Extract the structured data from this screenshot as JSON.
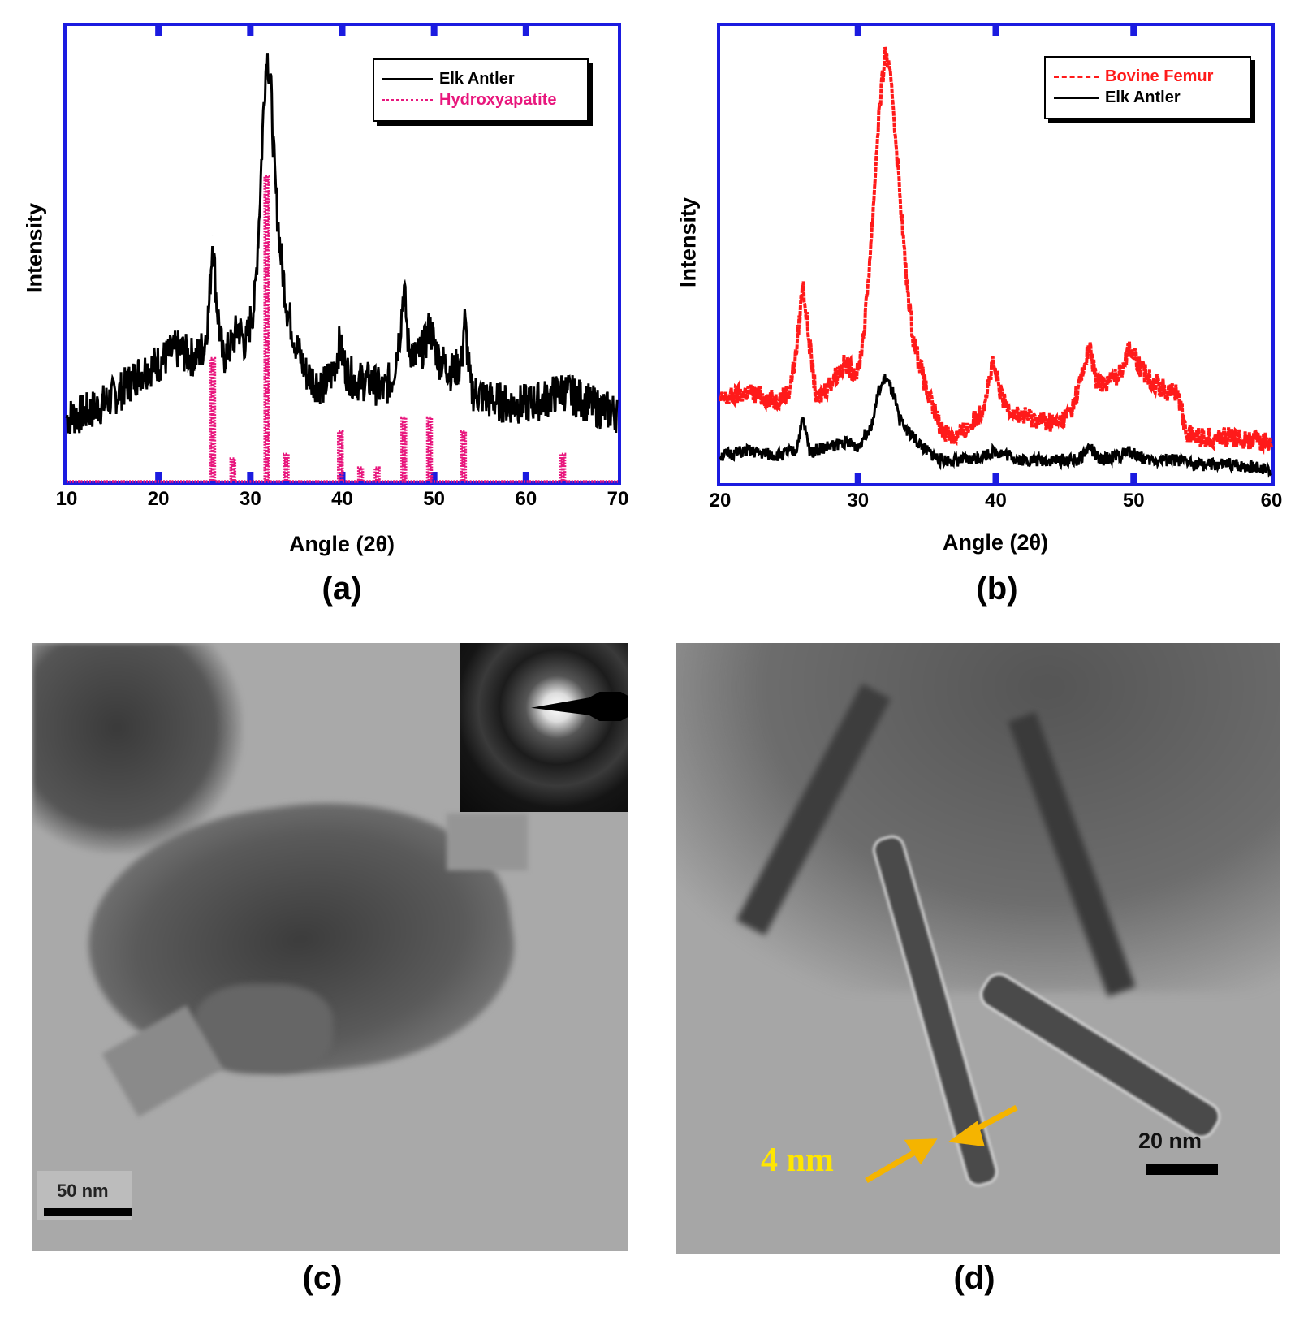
{
  "panels": {
    "a": {
      "label": "(a)"
    },
    "b": {
      "label": "(b)"
    },
    "c": {
      "label": "(c)",
      "scale_bar": "50 nm"
    },
    "d": {
      "label": "(d)",
      "scale_bar": "20 nm",
      "annotation": "4 nm"
    }
  },
  "colors": {
    "axis": "#1b1be0",
    "elk": "#000000",
    "hap": "#e8177d",
    "bovine": "#ff1a1a",
    "annotation": "#ffd400",
    "arrow": "#f5b400"
  },
  "chart_data": [
    {
      "id": "a",
      "type": "line",
      "title": "",
      "xlabel": "Angle (2θ)",
      "ylabel": "Intensity",
      "xlim": [
        10,
        70
      ],
      "ylim": [
        0,
        100
      ],
      "xticks": [
        10,
        20,
        30,
        40,
        50,
        60,
        70
      ],
      "xtick_labels": [
        "10",
        "20",
        "30",
        "40",
        "50",
        "60",
        "70"
      ],
      "grid": false,
      "legend_position": "top-right",
      "series": [
        {
          "name": "Elk Antler",
          "style": "solid",
          "color": "#000000",
          "x": [
            10,
            12,
            14,
            16,
            18,
            20,
            22,
            23,
            24,
            25,
            25.5,
            25.9,
            26.3,
            27,
            28,
            28.7,
            29.5,
            30.5,
            31,
            31.5,
            31.8,
            32.2,
            32.7,
            33.3,
            34,
            35,
            36,
            37,
            38,
            39,
            39.7,
            40.5,
            41.5,
            43,
            44.5,
            45.5,
            46.3,
            46.7,
            47.2,
            48,
            49,
            49.5,
            50.5,
            52,
            53,
            53.3,
            54,
            56,
            58,
            60,
            62,
            63,
            64,
            66,
            68,
            70
          ],
          "y": [
            14,
            15,
            17,
            20,
            24,
            26,
            29,
            28,
            27,
            30,
            38,
            54,
            40,
            27,
            30,
            34,
            30,
            40,
            60,
            85,
            94,
            88,
            65,
            50,
            38,
            30,
            24,
            22,
            21,
            24,
            30,
            24,
            22,
            22,
            20,
            23,
            33,
            43,
            30,
            27,
            30,
            34,
            27,
            24,
            26,
            36,
            20,
            18,
            17,
            17,
            18,
            19,
            20,
            18,
            16,
            15
          ]
        },
        {
          "name": "Hydroxyapatite",
          "style": "dotted-sticks",
          "color": "#e8177d",
          "x": [
            25.9,
            28.1,
            31.8,
            33.9,
            39.8,
            42.0,
            43.8,
            46.7,
            49.5,
            53.2,
            64.0
          ],
          "y": [
            27,
            5,
            67,
            6,
            11,
            3,
            3,
            14,
            14,
            11,
            6
          ]
        }
      ]
    },
    {
      "id": "b",
      "type": "line",
      "title": "",
      "xlabel": "Angle (2θ)",
      "ylabel": "Intensity",
      "xlim": [
        20,
        60
      ],
      "ylim": [
        0,
        100
      ],
      "xticks": [
        20,
        30,
        40,
        50,
        60
      ],
      "xtick_labels": [
        "20",
        "30",
        "40",
        "50",
        "60"
      ],
      "grid": false,
      "legend_position": "top-right",
      "series": [
        {
          "name": "Bovine Femur",
          "style": "dashed",
          "color": "#ff1a1a",
          "x": [
            20,
            21,
            22,
            23,
            24,
            25,
            25.5,
            26,
            26.5,
            27,
            28,
            29,
            30,
            30.5,
            31,
            31.5,
            32,
            32.5,
            33,
            33.5,
            34,
            35,
            36,
            37,
            38,
            39,
            39.8,
            40.5,
            41.5,
            43,
            44.5,
            45.5,
            46.3,
            46.8,
            47.3,
            48,
            49,
            49.7,
            50.5,
            51.5,
            52.5,
            53.2,
            53.8,
            55,
            57,
            60
          ],
          "y": [
            18,
            19,
            20,
            19,
            18,
            20,
            28,
            44,
            30,
            18,
            22,
            26,
            24,
            35,
            55,
            80,
            95,
            85,
            65,
            45,
            32,
            20,
            12,
            10,
            12,
            16,
            26,
            18,
            15,
            14,
            13,
            16,
            24,
            30,
            22,
            22,
            24,
            30,
            25,
            22,
            20,
            20,
            11,
            10,
            10,
            9
          ]
        },
        {
          "name": "Elk Antler",
          "style": "solid",
          "color": "#000000",
          "x": [
            20,
            22,
            24,
            25.5,
            26,
            26.5,
            28,
            29,
            30,
            31,
            31.5,
            32,
            32.5,
            33,
            34,
            35,
            36,
            38,
            40,
            42,
            44,
            46,
            46.8,
            47.5,
            49,
            49.7,
            51,
            53,
            55,
            57,
            60
          ],
          "y": [
            6,
            7,
            6,
            7,
            14,
            7,
            8,
            9,
            8,
            13,
            20,
            23,
            20,
            14,
            10,
            7,
            5,
            5,
            7,
            5,
            5,
            5,
            8,
            5,
            6,
            7,
            5,
            5,
            4,
            4,
            3
          ]
        }
      ]
    }
  ]
}
